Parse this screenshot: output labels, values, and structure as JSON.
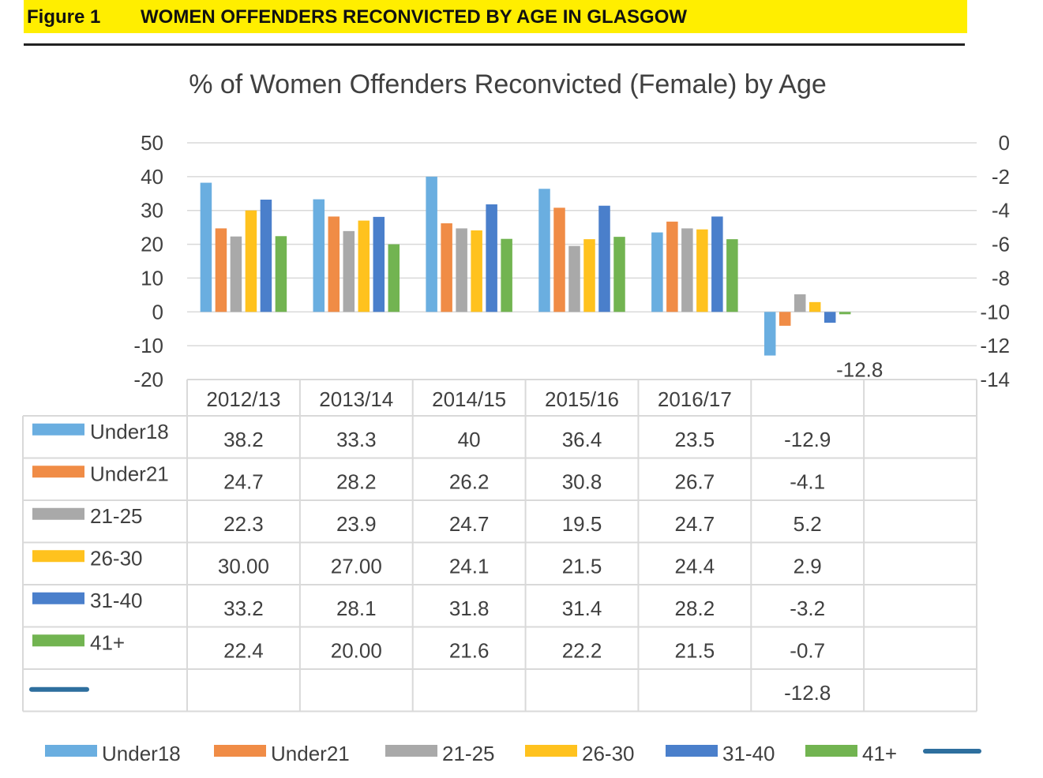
{
  "figure": {
    "label": "Figure 1",
    "title": "WOMEN OFFENDERS RECONVICTED BY AGE IN GLASGOW"
  },
  "colors": {
    "header_bg": "#ffee00",
    "grid": "#d9d9d9",
    "line_series": "#2e6f9e"
  },
  "chart_data": {
    "type": "bar",
    "title": "% of Women Offenders Reconvicted (Female) by Age",
    "xlabel": "",
    "ylabel": "",
    "categories": [
      "2012/13",
      "2013/14",
      "2014/15",
      "2015/16",
      "2016/17",
      "",
      ""
    ],
    "ylim": [
      -20,
      50
    ],
    "yticks": [
      50,
      40,
      30,
      20,
      10,
      0,
      -10,
      -20
    ],
    "y2lim": [
      -14,
      0
    ],
    "y2ticks": [
      0,
      -2,
      -4,
      -6,
      -8,
      -10,
      -12,
      -14
    ],
    "grid": true,
    "legend_position": "bottom",
    "series": [
      {
        "name": "Under18",
        "color": "#6aaee0",
        "values": [
          38.2,
          33.3,
          40,
          36.4,
          23.5,
          -12.9,
          null
        ],
        "labels": [
          "38.2",
          "33.3",
          "40",
          "36.4",
          "23.5",
          "-12.9",
          ""
        ]
      },
      {
        "name": "Under21",
        "color": "#f08c46",
        "values": [
          24.7,
          28.2,
          26.2,
          30.8,
          26.7,
          -4.1,
          null
        ],
        "labels": [
          "24.7",
          "28.2",
          "26.2",
          "30.8",
          "26.7",
          "-4.1",
          ""
        ]
      },
      {
        "name": "21-25",
        "color": "#a9a9a9",
        "values": [
          22.3,
          23.9,
          24.7,
          19.5,
          24.7,
          5.2,
          null
        ],
        "labels": [
          "22.3",
          "23.9",
          "24.7",
          "19.5",
          "24.7",
          "5.2",
          ""
        ]
      },
      {
        "name": "26-30",
        "color": "#ffc21e",
        "values": [
          30.0,
          27.0,
          24.1,
          21.5,
          24.4,
          2.9,
          null
        ],
        "labels": [
          "30.00",
          "27.00",
          "24.1",
          "21.5",
          "24.4",
          "2.9",
          ""
        ]
      },
      {
        "name": "31-40",
        "color": "#4a7fcb",
        "values": [
          33.2,
          28.1,
          31.8,
          31.4,
          28.2,
          -3.2,
          null
        ],
        "labels": [
          "33.2",
          "28.1",
          "31.8",
          "31.4",
          "28.2",
          "-3.2",
          ""
        ]
      },
      {
        "name": "41+",
        "color": "#72b451",
        "values": [
          22.4,
          20.0,
          21.6,
          22.2,
          21.5,
          -0.7,
          null
        ],
        "labels": [
          "22.4",
          "20.00",
          "21.6",
          "22.2",
          "21.5",
          "-0.7",
          ""
        ]
      },
      {
        "name": "",
        "type": "line",
        "axis": "secondary",
        "color": "#2e6f9e",
        "values": [
          null,
          null,
          null,
          null,
          null,
          -12.8,
          null
        ],
        "labels": [
          "",
          "",
          "",
          "",
          "",
          "-12.8",
          ""
        ]
      }
    ],
    "annotations": [
      {
        "text": "-12.8",
        "category_index": 5
      }
    ]
  }
}
